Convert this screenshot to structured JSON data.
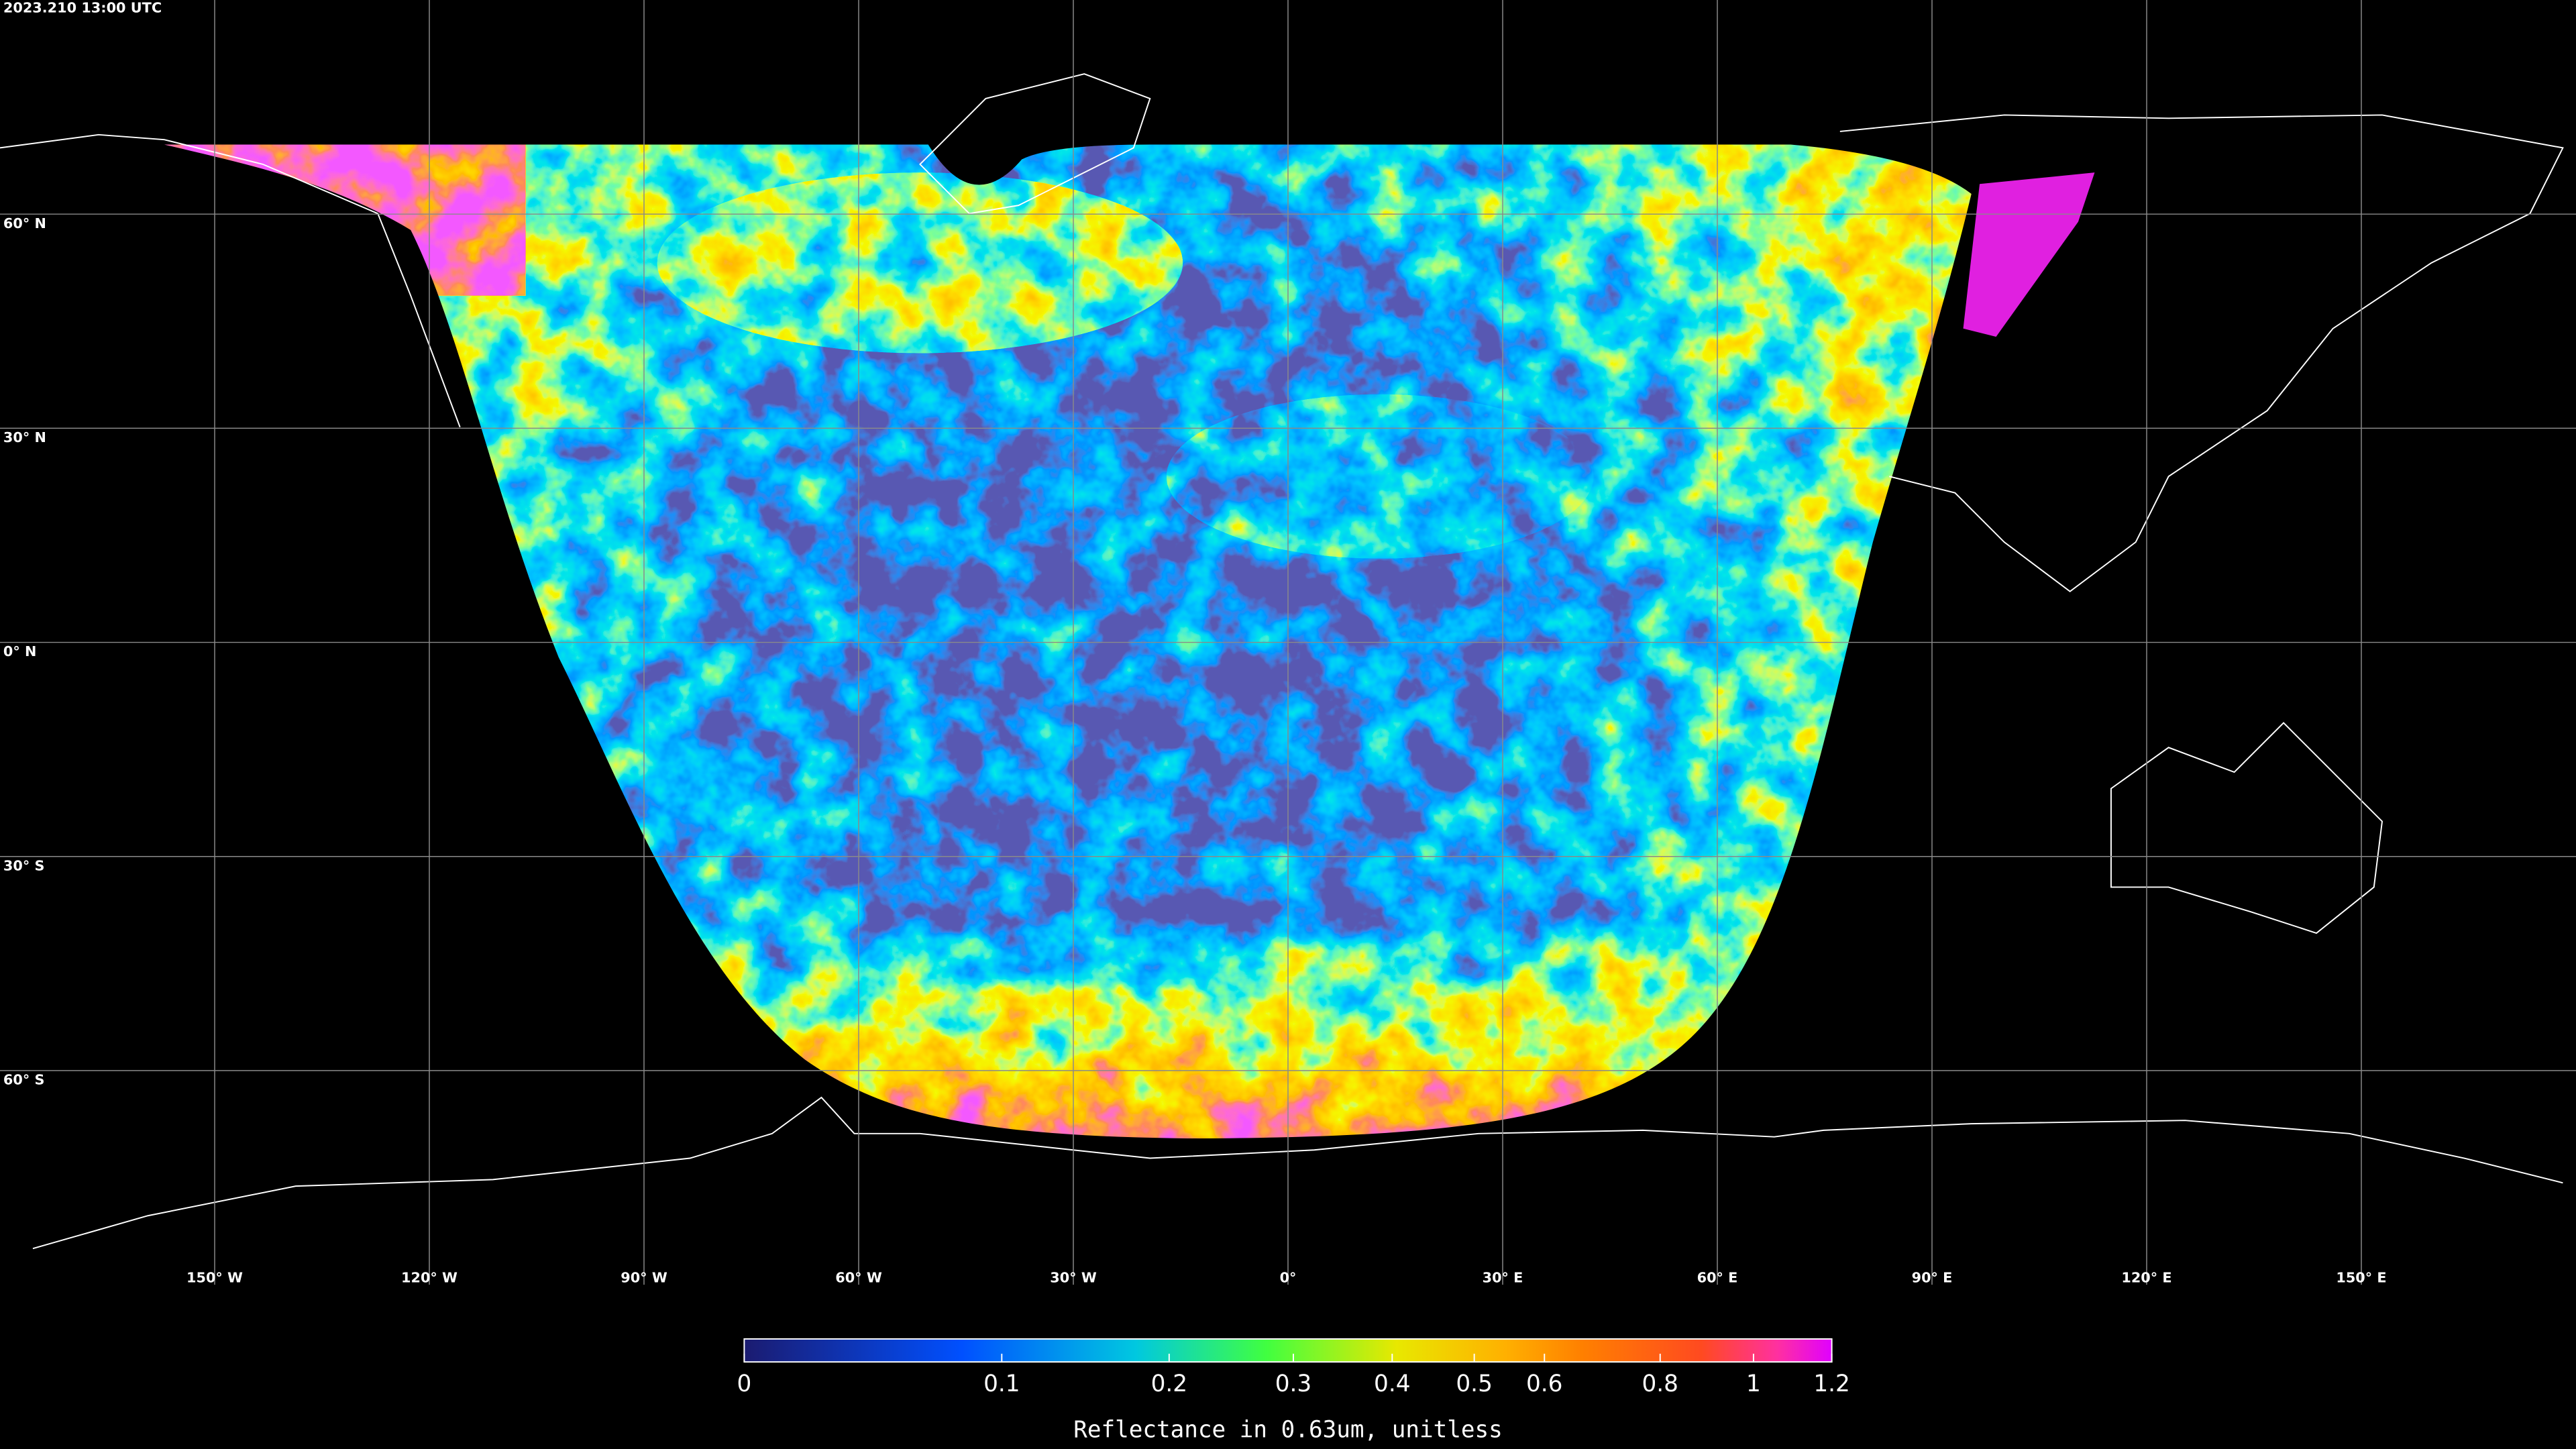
{
  "header": {
    "title": "2023.210 13:00 UTC"
  },
  "map": {
    "latitudes": [
      {
        "value": 60,
        "label": "60° N"
      },
      {
        "value": 30,
        "label": "30° N"
      },
      {
        "value": 0,
        "label": "0° N"
      },
      {
        "value": -30,
        "label": "30° S"
      },
      {
        "value": -60,
        "label": "60° S"
      }
    ],
    "longitudes": [
      {
        "value": -150,
        "label": "150° W"
      },
      {
        "value": -120,
        "label": "120° W"
      },
      {
        "value": -90,
        "label": "90° W"
      },
      {
        "value": -60,
        "label": "60° W"
      },
      {
        "value": -30,
        "label": "30° W"
      },
      {
        "value": 0,
        "label": "0°"
      },
      {
        "value": 30,
        "label": "30° E"
      },
      {
        "value": 60,
        "label": "60° E"
      },
      {
        "value": 90,
        "label": "90° E"
      },
      {
        "value": 120,
        "label": "120° E"
      },
      {
        "value": 150,
        "label": "150° E"
      }
    ]
  },
  "colorbar": {
    "label": "Reflectance in 0.63um, unitless",
    "range": [
      0,
      1.2
    ],
    "ticks": [
      0,
      0.1,
      0.2,
      0.3,
      0.4,
      0.5,
      0.6,
      0.8,
      1,
      1.2
    ]
  }
}
